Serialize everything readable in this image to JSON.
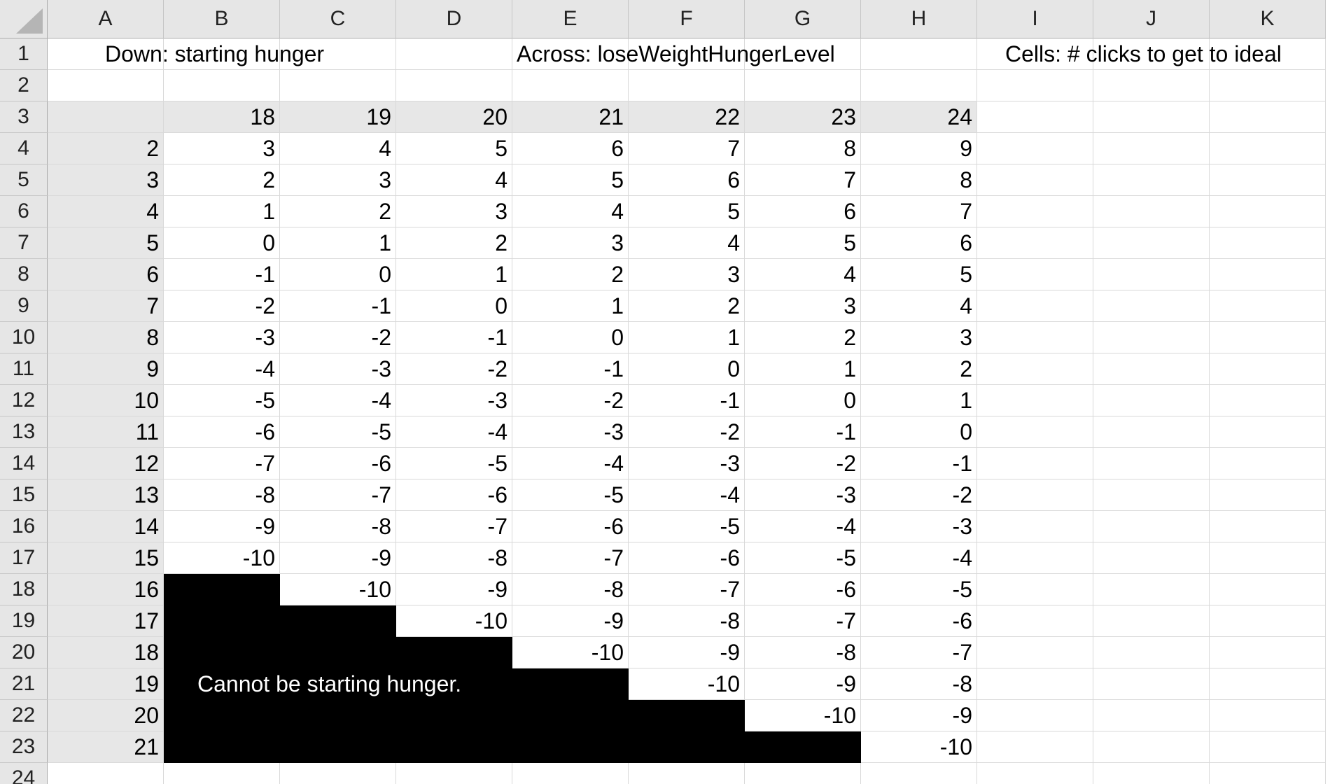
{
  "columns": [
    "A",
    "B",
    "C",
    "D",
    "E",
    "F",
    "G",
    "H",
    "I",
    "J",
    "K"
  ],
  "rows": [
    "1",
    "2",
    "3",
    "4",
    "5",
    "6",
    "7",
    "8",
    "9",
    "10",
    "11",
    "12",
    "13",
    "14",
    "15",
    "16",
    "17",
    "18",
    "19",
    "20",
    "21",
    "22",
    "23",
    "24"
  ],
  "labels": {
    "down": "Down: starting hunger",
    "across": "Across: loseWeightHungerLevel",
    "cells": "Cells: # clicks to get to ideal"
  },
  "table": {
    "lose_weight_hunger_levels": [
      18,
      19,
      20,
      21,
      22,
      23,
      24
    ],
    "starting_hunger_values": [
      2,
      3,
      4,
      5,
      6,
      7,
      8,
      9,
      10,
      11,
      12,
      13,
      14,
      15,
      16,
      17,
      18,
      19,
      20,
      21
    ],
    "clicks": [
      [
        3,
        4,
        5,
        6,
        7,
        8,
        9
      ],
      [
        2,
        3,
        4,
        5,
        6,
        7,
        8
      ],
      [
        1,
        2,
        3,
        4,
        5,
        6,
        7
      ],
      [
        0,
        1,
        2,
        3,
        4,
        5,
        6
      ],
      [
        -1,
        0,
        1,
        2,
        3,
        4,
        5
      ],
      [
        -2,
        -1,
        0,
        1,
        2,
        3,
        4
      ],
      [
        -3,
        -2,
        -1,
        0,
        1,
        2,
        3
      ],
      [
        -4,
        -3,
        -2,
        -1,
        0,
        1,
        2
      ],
      [
        -5,
        -4,
        -3,
        -2,
        -1,
        0,
        1
      ],
      [
        -6,
        -5,
        -4,
        -3,
        -2,
        -1,
        0
      ],
      [
        -7,
        -6,
        -5,
        -4,
        -3,
        -2,
        -1
      ],
      [
        -8,
        -7,
        -6,
        -5,
        -4,
        -3,
        -2
      ],
      [
        -9,
        -8,
        -7,
        -6,
        -5,
        -4,
        -3
      ],
      [
        -10,
        -9,
        -8,
        -7,
        -6,
        -5,
        -4
      ],
      [
        null,
        -10,
        -9,
        -8,
        -7,
        -6,
        -5
      ],
      [
        null,
        null,
        -10,
        -9,
        -8,
        -7,
        -6
      ],
      [
        null,
        null,
        null,
        -10,
        -9,
        -8,
        -7
      ],
      [
        null,
        null,
        null,
        null,
        -10,
        -9,
        -8
      ],
      [
        null,
        null,
        null,
        null,
        null,
        -10,
        -9
      ],
      [
        null,
        null,
        null,
        null,
        null,
        null,
        -10
      ]
    ]
  },
  "blocked_note": "Cannot be starting hunger.",
  "colors": {
    "header_bg": "#e6e6e6",
    "highlight_bg": "#e7e7e7",
    "blocked_bg": "#000000",
    "gridline": "#d9d9d9"
  }
}
